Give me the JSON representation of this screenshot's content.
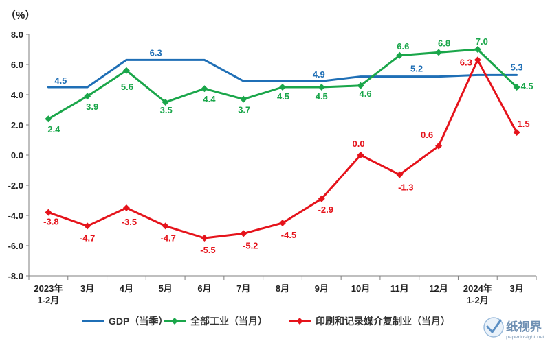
{
  "chart_data": {
    "type": "line",
    "ylabel": "（%）",
    "ylim": [
      -8,
      8
    ],
    "ytick_labels": [
      "8.0",
      "6.0",
      "4.0",
      "2.0",
      "0.0",
      "-2.0",
      "-4.0",
      "-6.0",
      "-8.0"
    ],
    "categories": [
      [
        "2023年",
        "1-2月"
      ],
      [
        "3月"
      ],
      [
        "4月"
      ],
      [
        "5月"
      ],
      [
        "6月"
      ],
      [
        "7月"
      ],
      [
        "8月"
      ],
      [
        "9月"
      ],
      [
        "10月"
      ],
      [
        "11月"
      ],
      [
        "12月"
      ],
      [
        "2024年",
        "1-2月"
      ],
      [
        "3月"
      ]
    ],
    "legend": "bottom",
    "grid": false,
    "series": [
      {
        "name": "GDP（当季）",
        "color": "#1f6fb6",
        "marker": "none",
        "values": [
          4.5,
          4.5,
          6.3,
          6.3,
          6.3,
          4.9,
          4.9,
          4.9,
          5.2,
          5.2,
          5.2,
          5.3,
          5.3
        ],
        "labels": [
          "4.5",
          null,
          null,
          "6.3",
          null,
          null,
          null,
          "4.9",
          null,
          null,
          "5.2",
          null,
          "5.3"
        ]
      },
      {
        "name": "全部工业（当月）",
        "color": "#1aa64a",
        "marker": "diamond",
        "values": [
          2.4,
          3.9,
          5.6,
          3.5,
          4.4,
          3.7,
          4.5,
          4.5,
          4.6,
          6.6,
          6.8,
          7.0,
          4.5
        ],
        "labels": [
          "2.4",
          "3.9",
          "5.6",
          "3.5",
          "4.4",
          "3.7",
          "4.5",
          "4.5",
          "4.6",
          "6.6",
          "6.8",
          "7.0",
          "4.5"
        ]
      },
      {
        "name": "印刷和记录媒介复制业（当月）",
        "color": "#e5131b",
        "marker": "diamond",
        "values": [
          -3.8,
          -4.7,
          -3.5,
          -4.7,
          -5.5,
          -5.2,
          -4.5,
          -2.9,
          0.0,
          -1.3,
          0.6,
          6.3,
          1.5
        ],
        "labels": [
          "-3.8",
          "-4.7",
          "-3.5",
          "-4.7",
          "-5.5",
          "-5.2",
          "-4.5",
          "-2.9",
          "0.0",
          "-1.3",
          "0.6",
          "6.3",
          "1.5"
        ]
      }
    ]
  },
  "watermark": {
    "name": "纸视界",
    "url": "paperinsight.net",
    "icon": "check-circle-icon",
    "color": "#6f90b3"
  }
}
